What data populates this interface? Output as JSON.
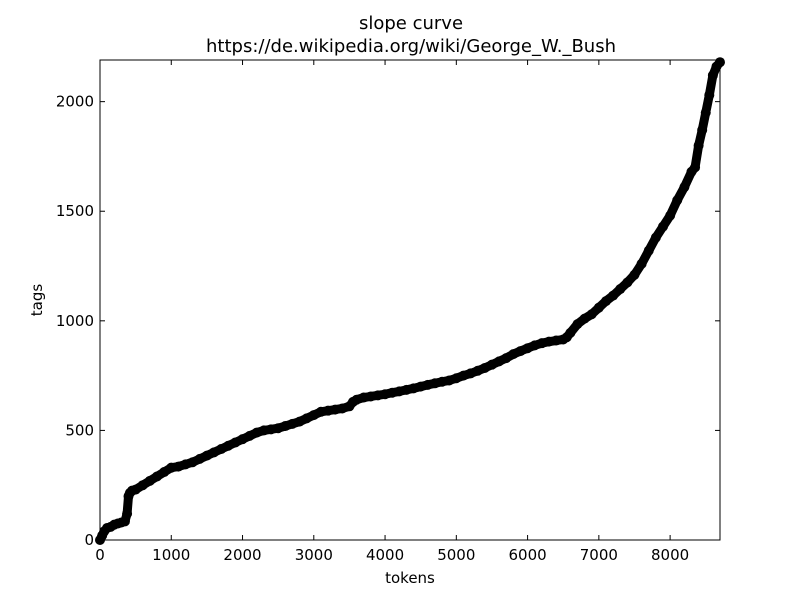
{
  "chart_data": {
    "type": "scatter",
    "title": "slope curve",
    "subtitle": "https://de.wikipedia.org/wiki/George_W._Bush",
    "xlabel": "tokens",
    "ylabel": "tags",
    "xlim": [
      0,
      8700
    ],
    "ylim": [
      0,
      2190
    ],
    "xticks": [
      0,
      1000,
      2000,
      3000,
      4000,
      5000,
      6000,
      7000,
      8000
    ],
    "yticks": [
      0,
      500,
      1000,
      1500,
      2000
    ],
    "grid": false,
    "marker_color": "#000000",
    "series": [
      {
        "x": [
          0,
          30,
          60,
          100,
          150,
          200,
          250,
          300,
          350,
          380,
          400,
          420,
          450,
          500,
          600,
          700,
          800,
          900,
          1000,
          1100,
          1200,
          1300,
          1400,
          1500,
          1600,
          1700,
          1800,
          1900,
          2000,
          2100,
          2200,
          2300,
          2400,
          2500,
          2600,
          2700,
          2800,
          2900,
          3000,
          3100,
          3200,
          3300,
          3400,
          3500,
          3550,
          3600,
          3700,
          3800,
          3900,
          4000,
          4100,
          4200,
          4300,
          4400,
          4500,
          4600,
          4700,
          4800,
          4900,
          5000,
          5100,
          5200,
          5300,
          5400,
          5500,
          5600,
          5700,
          5800,
          5900,
          6000,
          6100,
          6200,
          6300,
          6400,
          6500,
          6550,
          6600,
          6700,
          6800,
          6900,
          7000,
          7100,
          7200,
          7300,
          7400,
          7500,
          7600,
          7700,
          7800,
          7900,
          8000,
          8100,
          8200,
          8300,
          8350,
          8400,
          8450,
          8500,
          8550,
          8600,
          8650,
          8700
        ],
        "y": [
          0,
          20,
          40,
          55,
          60,
          70,
          75,
          80,
          85,
          120,
          200,
          215,
          225,
          230,
          250,
          270,
          290,
          310,
          330,
          335,
          345,
          355,
          370,
          385,
          400,
          415,
          430,
          445,
          460,
          475,
          490,
          500,
          505,
          510,
          520,
          530,
          540,
          555,
          570,
          585,
          590,
          595,
          600,
          610,
          630,
          640,
          650,
          655,
          660,
          665,
          672,
          678,
          685,
          692,
          700,
          708,
          715,
          722,
          728,
          738,
          750,
          760,
          772,
          785,
          800,
          815,
          830,
          848,
          862,
          875,
          888,
          898,
          905,
          910,
          915,
          925,
          945,
          985,
          1010,
          1030,
          1060,
          1090,
          1115,
          1145,
          1175,
          1210,
          1260,
          1320,
          1380,
          1430,
          1480,
          1550,
          1610,
          1680,
          1700,
          1800,
          1870,
          1950,
          2030,
          2120,
          2160,
          2180
        ]
      }
    ]
  }
}
